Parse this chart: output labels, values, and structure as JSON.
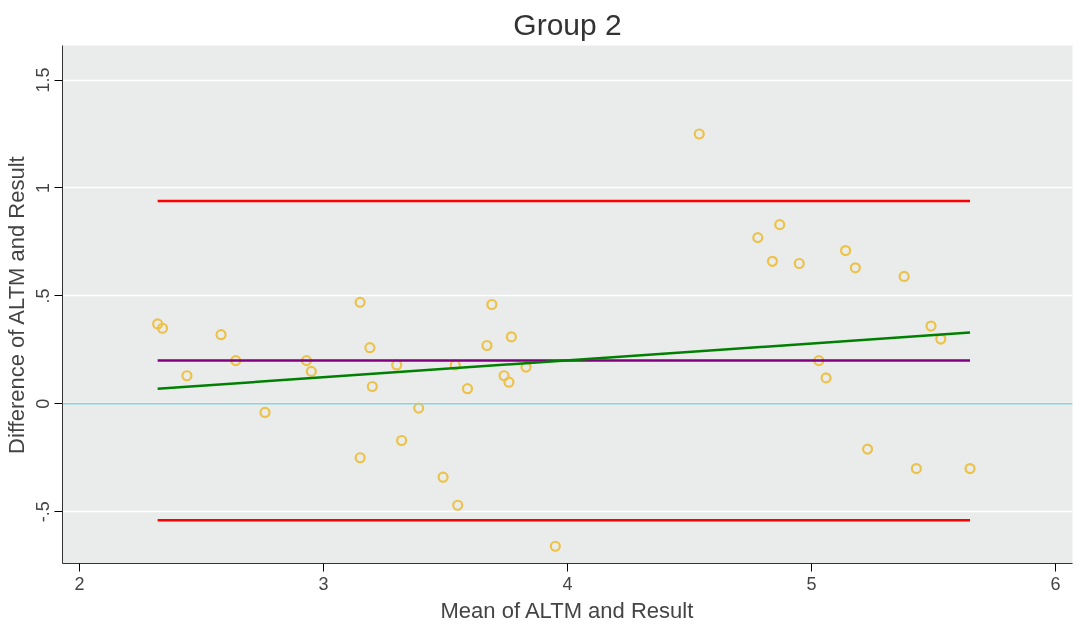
{
  "chart_data": {
    "type": "scatter",
    "title": "Group 2",
    "xlabel": "Mean of ALTM and Result",
    "ylabel": "Difference of ALTM and Result",
    "xlim": [
      1.93,
      6.07
    ],
    "ylim": [
      -0.74,
      1.66
    ],
    "xticks": [
      2,
      3,
      4,
      5,
      6
    ],
    "yticks": [
      {
        "value": -0.5,
        "label": "-.5"
      },
      0,
      {
        "value": 0.5,
        "label": ".5"
      },
      1,
      1.5
    ],
    "grid": "y",
    "ref_lines": [
      {
        "axis": "y",
        "value": 0,
        "label": null,
        "color": "#88d4dc"
      }
    ],
    "series": [
      {
        "color": "#ecc24a",
        "marker": "circle",
        "x": [
          2.32,
          2.34,
          2.44,
          2.58,
          2.64,
          2.76,
          2.93,
          2.95,
          3.15,
          3.15,
          3.19,
          3.2,
          3.3,
          3.32,
          3.39,
          3.49,
          3.54,
          3.55,
          3.59,
          3.67,
          3.69,
          3.74,
          3.76,
          3.77,
          3.83,
          3.95,
          4.54,
          4.78,
          4.84,
          4.87,
          4.95,
          5.03,
          5.06,
          5.14,
          5.18,
          5.23,
          5.38,
          5.43,
          5.49,
          5.53,
          5.65
        ],
        "values": [
          0.37,
          0.35,
          0.13,
          0.32,
          0.2,
          -0.04,
          0.2,
          0.15,
          -0.25,
          0.47,
          0.26,
          0.08,
          0.18,
          -0.17,
          -0.02,
          -0.34,
          0.18,
          -0.47,
          0.07,
          0.27,
          0.46,
          0.13,
          0.1,
          0.31,
          0.17,
          -0.66,
          1.25,
          0.77,
          0.66,
          0.83,
          0.65,
          0.2,
          0.12,
          0.71,
          0.63,
          -0.21,
          0.59,
          -0.3,
          0.36,
          0.3,
          -0.3
        ]
      },
      {
        "type": "line",
        "color": "#ff0000",
        "line_style": "solid",
        "x": [
          2.32,
          5.65
        ],
        "values": [
          0.94,
          0.94
        ]
      },
      {
        "type": "line",
        "color": "#ff0000",
        "line_style": "solid",
        "x": [
          2.32,
          5.65
        ],
        "values": [
          -0.54,
          -0.54
        ]
      },
      {
        "type": "line",
        "color": "#800080",
        "line_style": "solid",
        "x": [
          2.32,
          5.65
        ],
        "values": [
          0.2,
          0.2
        ]
      },
      {
        "type": "line",
        "color": "#008000",
        "line_style": "solid",
        "x": [
          2.32,
          5.65
        ],
        "values": [
          0.07,
          0.33
        ]
      }
    ]
  }
}
